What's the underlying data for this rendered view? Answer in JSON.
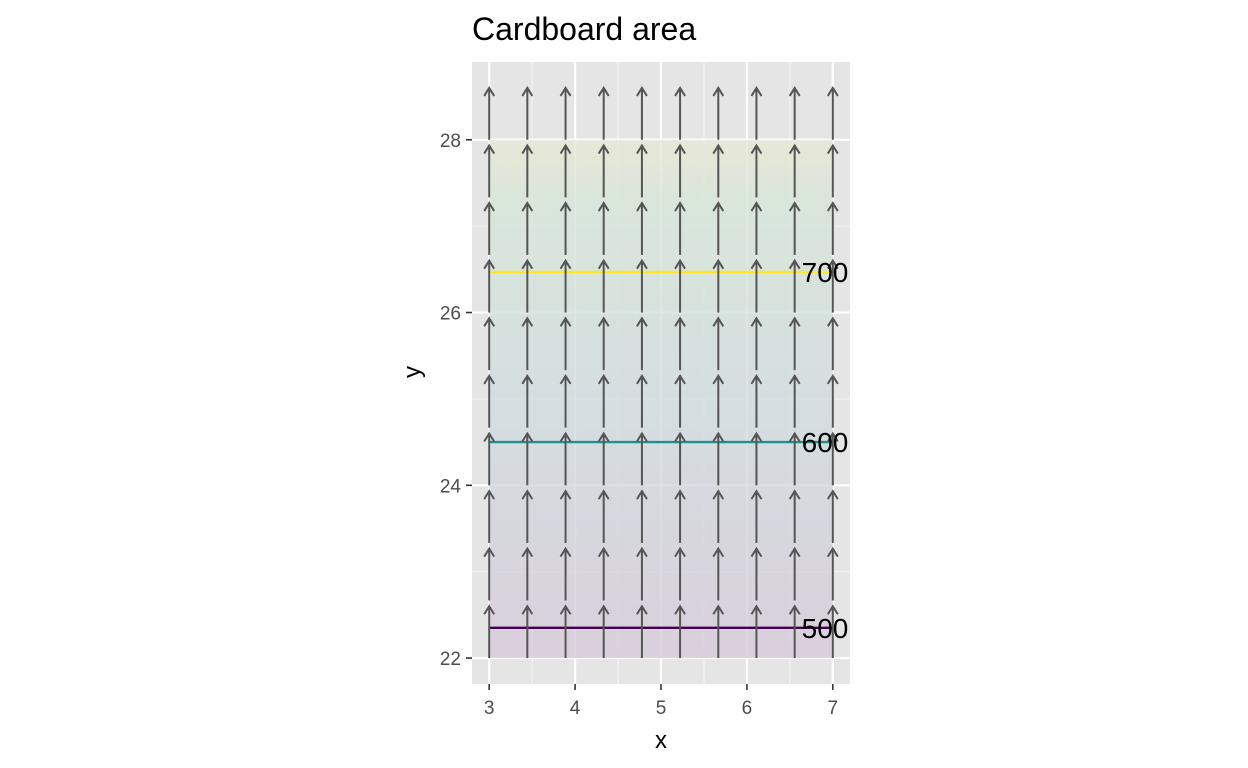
{
  "chart_data": {
    "type": "vector_field_contour",
    "title": "Cardboard area",
    "xlabel": "x",
    "ylabel": "y",
    "xlim": [
      2.8,
      7.2
    ],
    "ylim": [
      21.7,
      28.9
    ],
    "x_ticks": [
      3,
      4,
      5,
      6,
      7
    ],
    "y_ticks": [
      22,
      24,
      26,
      28
    ],
    "fill_region": {
      "x": [
        3,
        7
      ],
      "y": [
        22,
        28
      ]
    },
    "fill_gradient": [
      {
        "value": 480,
        "color": "#d6cad8"
      },
      {
        "value": 600,
        "color": "#d0dcdf"
      },
      {
        "value": 700,
        "color": "#d6e6d8"
      },
      {
        "value": 730,
        "color": "#e8e8d3"
      }
    ],
    "contours": [
      {
        "level": 500,
        "label": "500",
        "y": 22.35,
        "color": "#440154"
      },
      {
        "level": 600,
        "label": "600",
        "y": 24.5,
        "color": "#21908d"
      },
      {
        "level": 700,
        "label": "700",
        "y": 26.47,
        "color": "#fde725"
      }
    ],
    "vector_field": {
      "x_values": [
        3,
        3.444,
        3.889,
        4.333,
        4.778,
        5.222,
        5.667,
        6.111,
        6.556,
        7
      ],
      "y_values": [
        22,
        22.667,
        23.333,
        24,
        24.667,
        25.333,
        26,
        26.667,
        27.333,
        28
      ],
      "dx": 0,
      "dy": 0.6,
      "color": "#555555"
    }
  }
}
